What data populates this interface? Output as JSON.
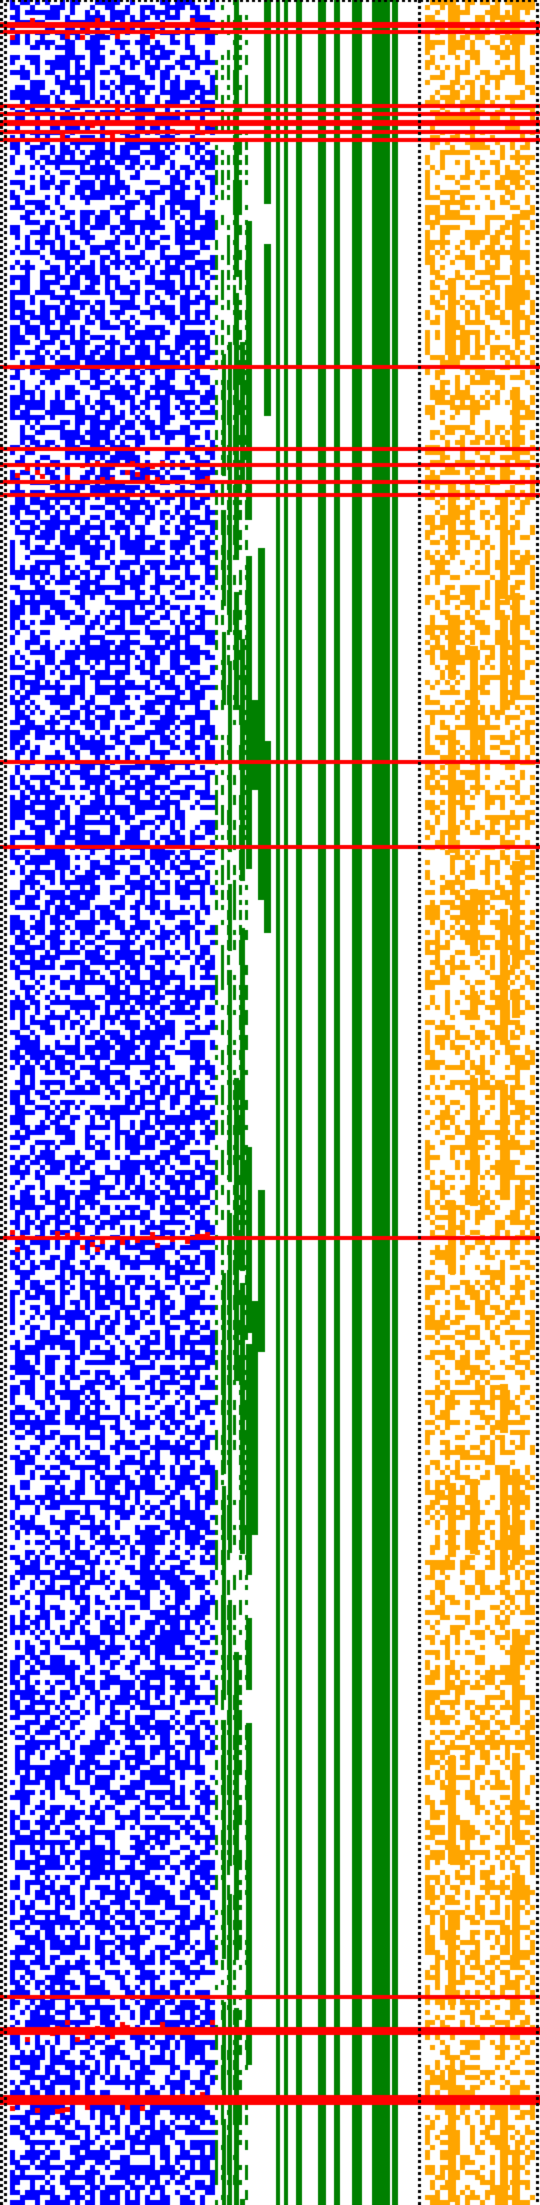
{
  "image": {
    "description_free": true
  },
  "palette": {
    "background": "#ffffff",
    "blue": "#0000ff",
    "green": "#008000",
    "orange": "#ffa500",
    "red": "#ff0000",
    "black": "#000000"
  },
  "regions": {
    "noise_block_color": "blue",
    "staircase_color": "green",
    "right_noise_color": "orange",
    "stripe_color": "red",
    "border_color": "black"
  }
}
